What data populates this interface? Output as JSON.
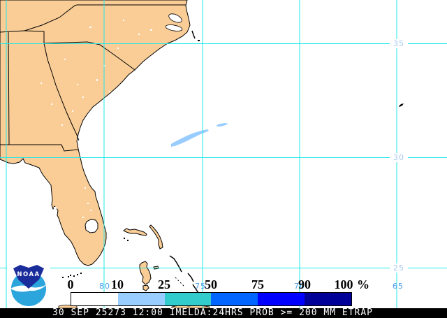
{
  "status_bar": {
    "text": "30 SEP 25273 12:00 IMELDA:24HRS PROB >= 200 MM ETRAP"
  },
  "logo": {
    "text": "NOAA"
  },
  "legend": {
    "unit": "%",
    "tick_labels": [
      "0",
      "10",
      "25",
      "50",
      "75",
      "90",
      "100"
    ],
    "segments": [
      {
        "range": "0-10",
        "color": "#FFFFFF"
      },
      {
        "range": "10-25",
        "color": "#99CCFF"
      },
      {
        "range": "25-50",
        "color": "#33CCCC"
      },
      {
        "range": "50-75",
        "color": "#0066FF"
      },
      {
        "range": "75-90",
        "color": "#0000FF"
      },
      {
        "range": "90-100",
        "color": "#000099"
      }
    ]
  },
  "grid": {
    "lat_labels": [
      "35",
      "30",
      "25"
    ],
    "lon_labels": [
      "80",
      "75",
      "70",
      "65"
    ],
    "line_color": "#21E8E8",
    "lat_label_color": "#A6C9F0",
    "lon_label_color": "#4D9FE8"
  },
  "map_colors": {
    "land": "#FACD96",
    "ocean": "#FFFFFF",
    "coastline": "#000000",
    "probability_shading": "#99CCFF"
  },
  "chart_data": {
    "type": "heatmap",
    "title": "30 SEP 25273 12:00 IMELDA:24HRS PROB >= 200 MM ETRAP",
    "legend_thresholds_percent": [
      0,
      10,
      25,
      50,
      75,
      90,
      100
    ],
    "legend_colors": [
      "#FFFFFF",
      "#99CCFF",
      "#33CCCC",
      "#0066FF",
      "#0000FF",
      "#000099"
    ],
    "lat_gridlines_deg_n": [
      35,
      30,
      25
    ],
    "lon_gridlines_deg_w": [
      85,
      80,
      75,
      70,
      65
    ],
    "shaded_regions": [
      {
        "probability_percent": "10-25",
        "approx_location": "Atlantic ocean near 29.8N 74.6W, elongated SW-NE streak"
      },
      {
        "probability_percent": "10-25",
        "approx_location": "Atlantic ocean near 30.2N 73.3W, small patch"
      }
    ]
  }
}
